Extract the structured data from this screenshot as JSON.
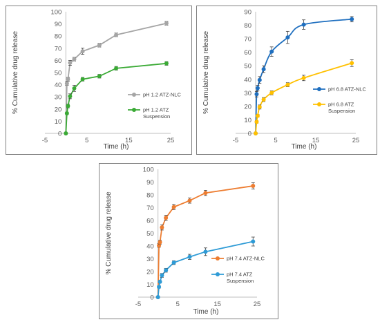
{
  "chart_data": [
    {
      "type": "line",
      "xlabel": "Time (h)",
      "ylabel": "% Cumulative drug release",
      "xlim": [
        -5,
        25
      ],
      "ylim": [
        0,
        100
      ],
      "xticks": [
        "-5",
        "5",
        "15",
        "25"
      ],
      "yticks": [
        "0",
        "10",
        "20",
        "30",
        "40",
        "50",
        "60",
        "70",
        "80",
        "90",
        "100"
      ],
      "legend_position": "right",
      "smooth": false,
      "series": [
        {
          "name": "pH 1.2 ATZ-NLC",
          "name_lines": [
            "pH 1.2 ATZ-NLC"
          ],
          "color": "#a5a5a5",
          "x": [
            0,
            0.25,
            0.5,
            1,
            2,
            4,
            8,
            12,
            24
          ],
          "y": [
            0,
            41,
            44.5,
            58,
            61,
            67.5,
            72.5,
            81,
            90.5
          ],
          "err": [
            0,
            1.5,
            1.5,
            2,
            1.5,
            2.5,
            1.5,
            1.5,
            1.5
          ]
        },
        {
          "name": "pH 1.2 ATZ Suspension",
          "name_lines": [
            "pH 1.2 ATZ",
            "Suspension"
          ],
          "color": "#3aaa35",
          "x": [
            0,
            0.25,
            0.5,
            1,
            2,
            4,
            8,
            12,
            24
          ],
          "y": [
            0,
            16.5,
            22.5,
            30.5,
            37,
            44.5,
            47,
            53.5,
            57.5
          ],
          "err": [
            0,
            1,
            1.5,
            2,
            2.5,
            1.5,
            1.5,
            1.5,
            1.5
          ]
        }
      ]
    },
    {
      "type": "line",
      "xlabel": "Time (h)",
      "ylabel": "% Cumulative drug release",
      "xlim": [
        -5,
        25
      ],
      "ylim": [
        0,
        90
      ],
      "xticks": [
        "-5",
        "5",
        "15",
        "25"
      ],
      "yticks": [
        "0",
        "10",
        "20",
        "30",
        "40",
        "50",
        "60",
        "70",
        "80",
        "90"
      ],
      "legend_position": "right",
      "smooth": true,
      "series": [
        {
          "name": "pH 6.8 ATZ-NLC",
          "name_lines": [
            "pH 6.8 ATZ-NLC"
          ],
          "color": "#1f6fbf",
          "x": [
            0,
            0.25,
            0.5,
            1,
            2,
            4,
            8,
            12,
            24
          ],
          "y": [
            0,
            29,
            33.5,
            39.5,
            47.5,
            60.5,
            71,
            80.5,
            84.5
          ],
          "err": [
            0,
            2,
            2,
            2.5,
            2.5,
            3.5,
            4.5,
            3.5,
            2
          ]
        },
        {
          "name": "pH 6.8 ATZ Suspension",
          "name_lines": [
            "pH 6.8 ATZ",
            "Suspension"
          ],
          "color": "#ffc000",
          "x": [
            0,
            0.25,
            0.5,
            1,
            2,
            4,
            8,
            12,
            24
          ],
          "y": [
            0,
            8.5,
            13,
            19.5,
            25,
            30,
            36,
            41,
            52
          ],
          "err": [
            0,
            1,
            1,
            1.5,
            1.5,
            1.5,
            1.5,
            2,
            2.5
          ]
        }
      ]
    },
    {
      "type": "line",
      "xlabel": "Time (h)",
      "ylabel": "% Cumulative drug release",
      "xlim": [
        -5,
        25
      ],
      "ylim": [
        0,
        100
      ],
      "xticks": [
        "-5",
        "5",
        "15",
        "25"
      ],
      "yticks": [
        "0",
        "10",
        "20",
        "30",
        "40",
        "50",
        "60",
        "70",
        "80",
        "90",
        "100"
      ],
      "legend_position": "right",
      "smooth": false,
      "series": [
        {
          "name": "pH 7.4 ATZ-NLC",
          "name_lines": [
            "pH 7.4 ATZ-NLC"
          ],
          "color": "#ed7d31",
          "x": [
            0,
            0.25,
            0.5,
            1,
            2,
            4,
            8,
            12,
            24
          ],
          "y": [
            0,
            40.5,
            43,
            54.5,
            62,
            70.5,
            75.5,
            81.5,
            87
          ],
          "err": [
            0,
            1.5,
            1.5,
            2,
            2,
            2,
            2,
            2,
            2.5
          ]
        },
        {
          "name": "pH 7.4 ATZ Suspension",
          "name_lines": [
            "pH 7.4 ATZ",
            "Suspension"
          ],
          "color": "#2e9bd6",
          "x": [
            0,
            0.25,
            0.5,
            1,
            2,
            4,
            8,
            12,
            24
          ],
          "y": [
            0,
            8,
            12,
            17,
            21,
            27,
            31.5,
            35.5,
            43.5
          ],
          "err": [
            0,
            1,
            1,
            1.5,
            1.5,
            1.5,
            2,
            3,
            3.5
          ]
        }
      ]
    }
  ]
}
